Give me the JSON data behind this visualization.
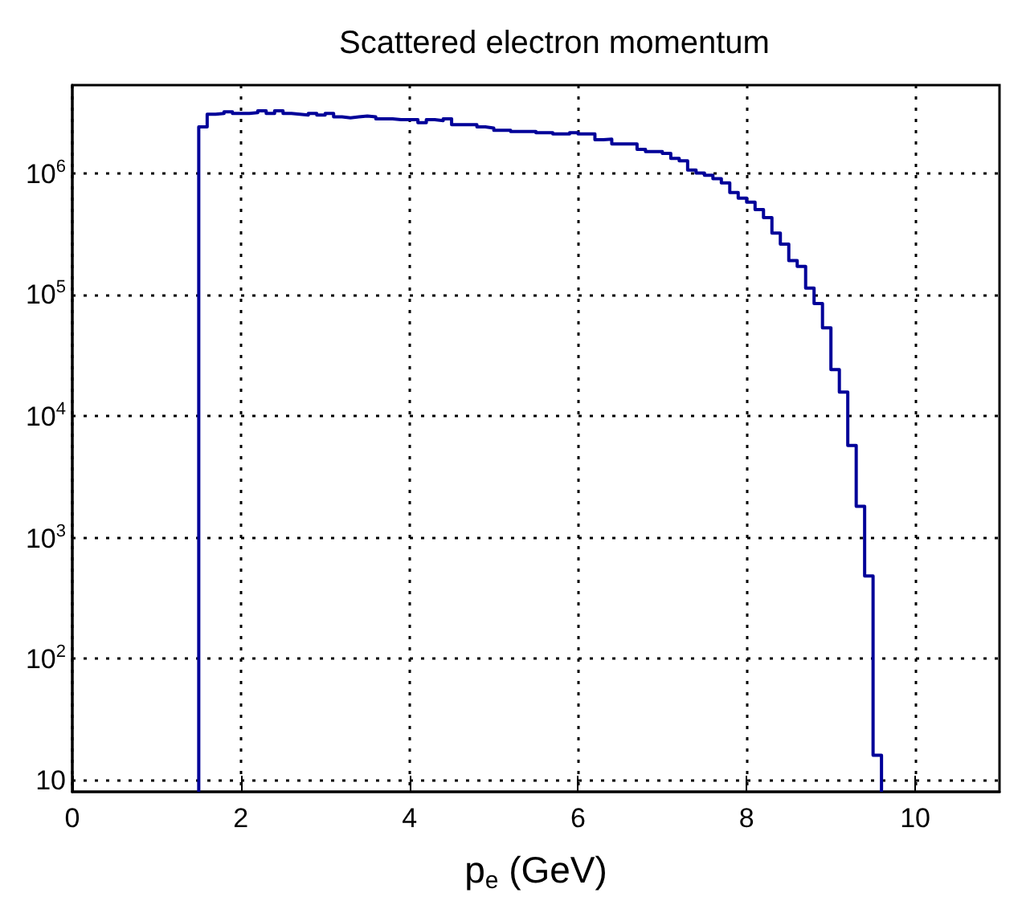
{
  "chart_data": {
    "type": "histogram",
    "title": "Scattered electron momentum",
    "xlabel": "p$_{e}$ (GeV)",
    "bins": [
      1.5,
      1.6,
      1.7,
      1.8,
      1.9,
      2.0,
      2.1,
      2.2,
      2.3,
      2.4,
      2.5,
      2.6,
      2.7,
      2.8,
      2.9,
      3.0,
      3.1,
      3.2,
      3.3,
      3.4,
      3.5,
      3.6,
      3.7,
      3.8,
      3.9,
      4.0,
      4.1,
      4.2,
      4.3,
      4.4,
      4.5,
      4.6,
      4.7,
      4.8,
      4.9,
      5.0,
      5.1,
      5.2,
      5.3,
      5.4,
      5.5,
      5.6,
      5.7,
      5.8,
      5.9,
      6.0,
      6.1,
      6.2,
      6.3,
      6.4,
      6.5,
      6.6,
      6.7,
      6.8,
      6.9,
      7.0,
      7.1,
      7.2,
      7.3,
      7.4,
      7.5,
      7.6,
      7.7,
      7.8,
      7.9,
      8.0,
      8.1,
      8.2,
      8.3,
      8.4,
      8.5,
      8.6,
      8.7,
      8.8,
      8.9,
      9.0,
      9.1,
      9.2,
      9.3,
      9.4,
      9.5,
      9.6
    ],
    "values": [
      2400000,
      3050000,
      3100000,
      3200000,
      3100000,
      3100000,
      3150000,
      3250000,
      3100000,
      3250000,
      3100000,
      3050000,
      3000000,
      3100000,
      3000000,
      3100000,
      2900000,
      2850000,
      2900000,
      2950000,
      2900000,
      2800000,
      2800000,
      2750000,
      2750000,
      2750000,
      2600000,
      2750000,
      2700000,
      2800000,
      2500000,
      2500000,
      2500000,
      2400000,
      2350000,
      2250000,
      2250000,
      2200000,
      2200000,
      2200000,
      2150000,
      2150000,
      2100000,
      2100000,
      2150000,
      2100000,
      2100000,
      1880000,
      1900000,
      1740000,
      1740000,
      1740000,
      1570000,
      1500000,
      1500000,
      1450000,
      1320000,
      1260000,
      1060000,
      1000000,
      960000,
      900000,
      830000,
      690000,
      620000,
      575000,
      500000,
      430000,
      320000,
      260000,
      190000,
      170000,
      113000,
      84000,
      53000,
      24000,
      15700,
      5700,
      1800,
      480,
      16
    ],
    "color": "#000099",
    "log": true,
    "grid": true,
    "xlim": [
      0,
      11
    ],
    "xticks": [
      0,
      2,
      4,
      6,
      8,
      10
    ],
    "ylim": [
      8,
      5300000
    ],
    "yticks": [
      10,
      {
        "value": 100,
        "label": "10$^{2}$"
      },
      {
        "value": 1000,
        "label": "10$^{3}$"
      },
      {
        "value": 10000,
        "label": "10$^{4}$"
      },
      {
        "value": 100000,
        "label": "10$^{5}$"
      },
      {
        "value": 1000000,
        "label": "10$^{6}$"
      }
    ]
  }
}
